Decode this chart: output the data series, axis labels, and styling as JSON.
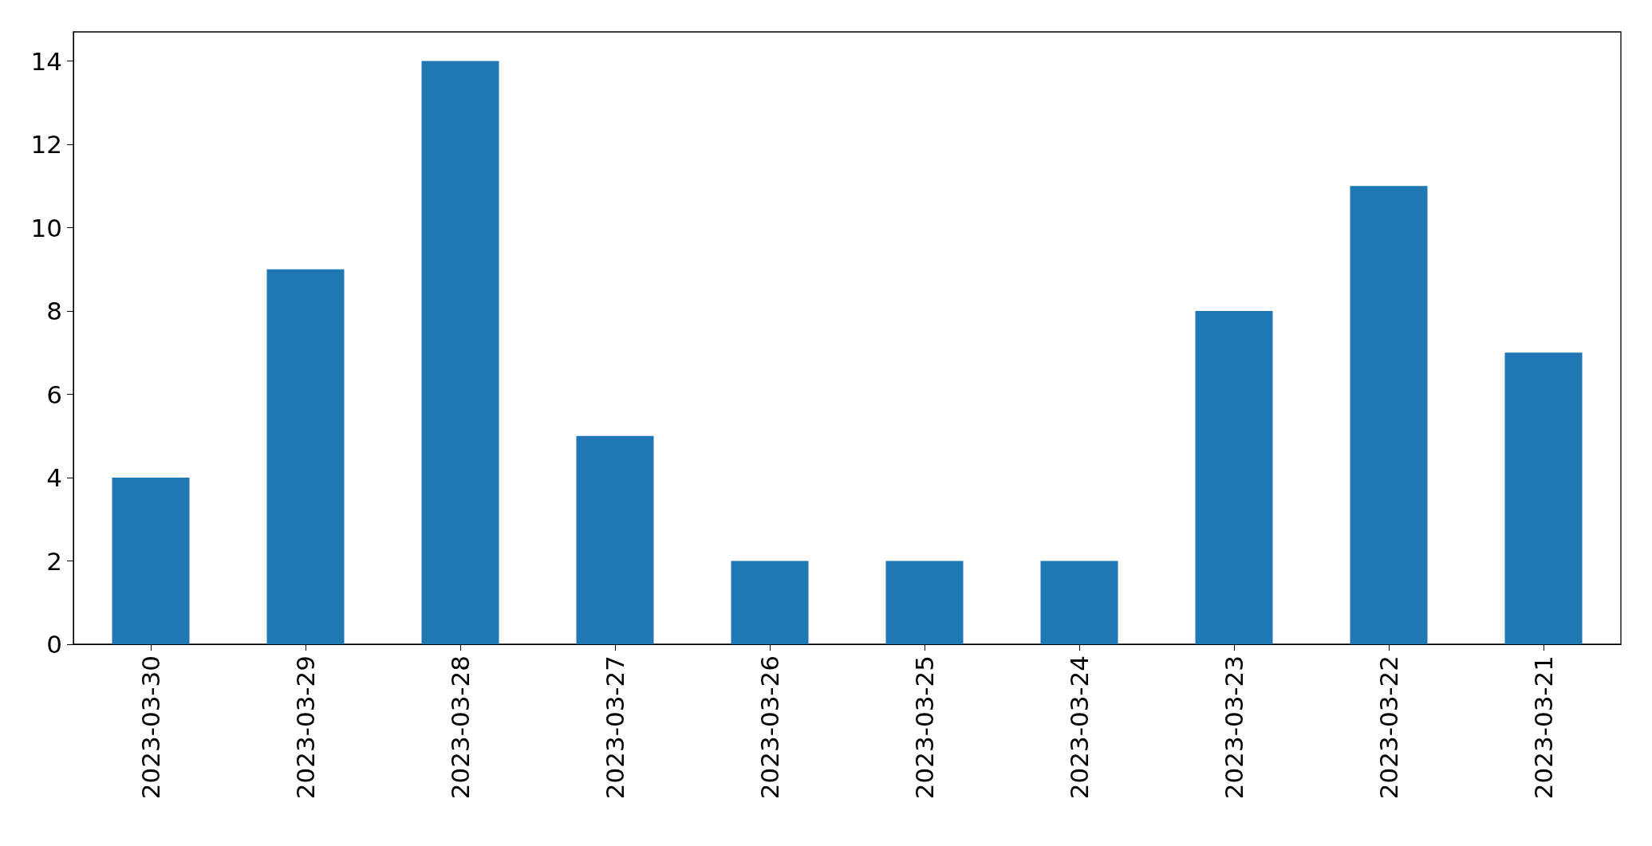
{
  "chart_data": {
    "type": "bar",
    "categories": [
      "2023-03-30",
      "2023-03-29",
      "2023-03-28",
      "2023-03-27",
      "2023-03-26",
      "2023-03-25",
      "2023-03-24",
      "2023-03-23",
      "2023-03-22",
      "2023-03-21"
    ],
    "values": [
      4,
      9,
      14,
      5,
      2,
      2,
      2,
      8,
      11,
      7
    ],
    "color": "#1f77b4",
    "ylim": [
      0,
      14.7
    ],
    "yticks": [
      0,
      2,
      4,
      6,
      8,
      10,
      12,
      14
    ]
  }
}
